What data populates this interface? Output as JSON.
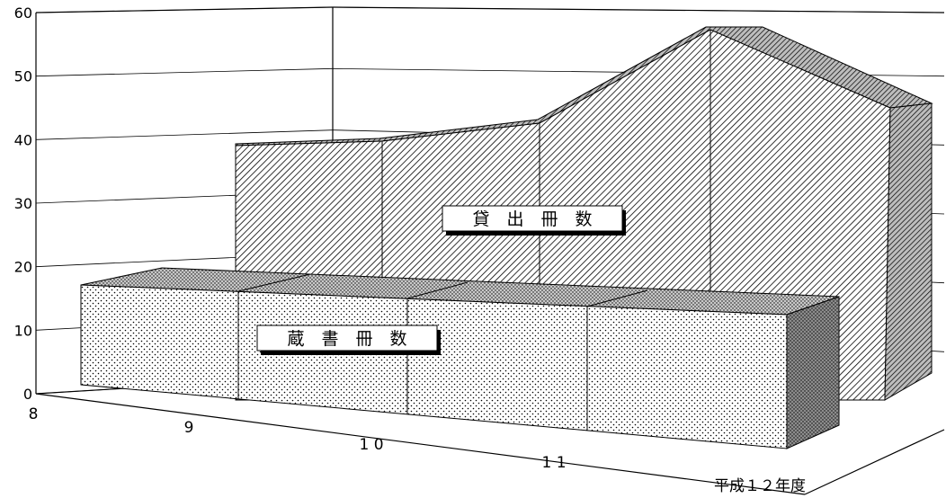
{
  "chart_data": {
    "type": "area",
    "categories": [
      "8",
      "9",
      "1 0",
      "1 1",
      "平成１２年度"
    ],
    "ylim": [
      0,
      60
    ],
    "yticks": [
      0,
      10,
      20,
      30,
      40,
      50,
      60
    ],
    "grid": true,
    "series": [
      {
        "name": "蔵　書　冊　数",
        "values": [
          17,
          17,
          17,
          17,
          17
        ]
      },
      {
        "name": "貸　出　冊　数",
        "values": [
          39,
          40,
          43,
          57,
          45
        ]
      }
    ]
  }
}
